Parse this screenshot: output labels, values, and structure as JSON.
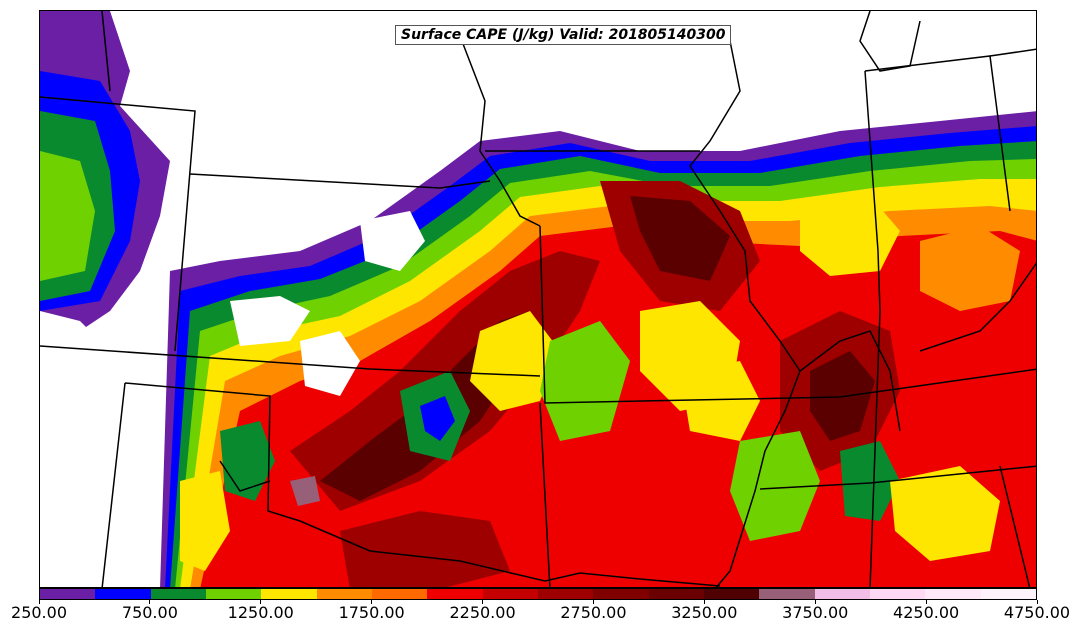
{
  "title": "Surface CAPE (J/kg) Valid: 201805140300",
  "colorbar": {
    "colors": [
      "#6a1fa4",
      "#0000ff",
      "#0a8a2e",
      "#6fd200",
      "#ffe600",
      "#ff8c00",
      "#ff6a00",
      "#ee0000",
      "#c40000",
      "#9e0000",
      "#800000",
      "#6a0000",
      "#4f0000",
      "#986078",
      "#f2bde6",
      "#ffd9f4",
      "#ffe9f8",
      "#fff3fb"
    ],
    "tick_labels": [
      "250.00",
      "750.00",
      "1250.00",
      "1750.00",
      "2250.00",
      "2750.00",
      "3250.00",
      "3750.00",
      "4250.00",
      "4750.00"
    ]
  },
  "legend_colors": {
    "purple": "#6a1fa4",
    "blue": "#0000ff",
    "green": "#0a8a2e",
    "lime": "#6fd200",
    "yellow": "#ffe600",
    "orange": "#ff8c00",
    "red": "#ee0000",
    "darkred": "#9e0000",
    "maroon": "#5a0000",
    "mauve": "#986078"
  }
}
